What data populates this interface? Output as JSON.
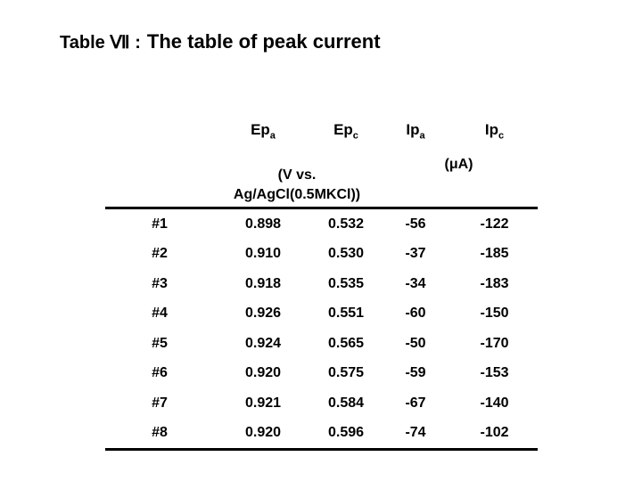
{
  "slide": {
    "title_prefix": "Table Ⅶ :",
    "title_main": "The table of peak current"
  },
  "table": {
    "headers": [
      {
        "base": "Ep",
        "sub": "a"
      },
      {
        "base": "Ep",
        "sub": "c"
      },
      {
        "base": "Ip",
        "sub": "a"
      },
      {
        "base": "Ip",
        "sub": "c"
      }
    ],
    "units": {
      "ep_line1": "(V vs.",
      "ep_line2": "Ag/AgCl(0.5MKCl))",
      "ip": "(μA)"
    },
    "rows": [
      {
        "label": "#1",
        "epa": "0.898",
        "epc": "0.532",
        "ipa": "-56",
        "ipc": "-122"
      },
      {
        "label": "#2",
        "epa": "0.910",
        "epc": "0.530",
        "ipa": "-37",
        "ipc": "-185"
      },
      {
        "label": "#3",
        "epa": "0.918",
        "epc": "0.535",
        "ipa": "-34",
        "ipc": "-183"
      },
      {
        "label": "#4",
        "epa": "0.926",
        "epc": "0.551",
        "ipa": "-60",
        "ipc": "-150"
      },
      {
        "label": "#5",
        "epa": "0.924",
        "epc": "0.565",
        "ipa": "-50",
        "ipc": "-170"
      },
      {
        "label": "#6",
        "epa": "0.920",
        "epc": "0.575",
        "ipa": "-59",
        "ipc": "-153"
      },
      {
        "label": "#7",
        "epa": "0.921",
        "epc": "0.584",
        "ipa": "-67",
        "ipc": "-140"
      },
      {
        "label": "#8",
        "epa": "0.920",
        "epc": "0.596",
        "ipa": "-74",
        "ipc": "-102"
      }
    ],
    "colors": {
      "text": "#000000",
      "background": "#ffffff",
      "rule": "#000000"
    }
  }
}
